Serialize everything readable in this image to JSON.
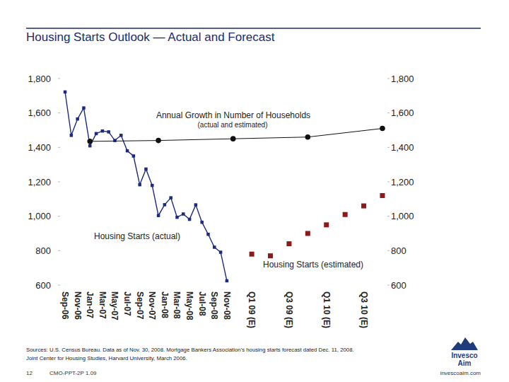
{
  "chart_data": {
    "type": "line",
    "title": "Housing Starts Outlook — Actual and Forecast",
    "categories": [
      "Sep-06",
      null,
      "Nov-06",
      null,
      "Jan-07",
      null,
      "Mar-07",
      null,
      "May-07",
      null,
      "Jul-07",
      null,
      "Sep-07",
      null,
      "Nov-07",
      null,
      "Jan-08",
      null,
      "Mar-08",
      null,
      "May-08",
      null,
      "Jul-08",
      null,
      "Sep-08",
      null,
      "Nov-08",
      null,
      null,
      null,
      "Q1 09 (E)",
      null,
      null,
      null,
      null,
      null,
      "Q3 09 (E)",
      null,
      null,
      null,
      null,
      null,
      "Q1 10 (E)",
      null,
      null,
      null,
      null,
      null,
      "Q3 10 (E)",
      null,
      null,
      null
    ],
    "series": [
      {
        "name": "Housing Starts (actual)",
        "color": "#1c2a80",
        "marker": "square",
        "line_style": "solid",
        "values": [
          1722,
          1470,
          1565,
          1629,
          1409,
          1480,
          1495,
          1490,
          1440,
          1470,
          1380,
          1350,
          1183,
          1274,
          1179,
          1004,
          1067,
          1107,
          994,
          1013,
          982,
          1066,
          965,
          895,
          820,
          791,
          625,
          null,
          null,
          null,
          null,
          null,
          null,
          null,
          null,
          null,
          null,
          null,
          null,
          null,
          null,
          null,
          null,
          null,
          null,
          null,
          null,
          null,
          null,
          null,
          null,
          null
        ]
      },
      {
        "name": "Housing Starts (estimated)",
        "color": "#8b1a1a",
        "marker": "square",
        "line_style": "none",
        "values": [
          null,
          null,
          null,
          null,
          null,
          null,
          null,
          null,
          null,
          null,
          null,
          null,
          null,
          null,
          null,
          null,
          null,
          null,
          null,
          null,
          null,
          null,
          null,
          null,
          null,
          null,
          null,
          null,
          null,
          null,
          780,
          null,
          null,
          770,
          null,
          null,
          840,
          null,
          null,
          900,
          null,
          null,
          950,
          null,
          null,
          1010,
          null,
          null,
          1060,
          null,
          null,
          1120
        ]
      },
      {
        "name": "Annual Growth in Number of Households",
        "color": "#111111",
        "marker": "circle",
        "line_style": "solid",
        "values": [
          null,
          null,
          null,
          null,
          1435,
          null,
          null,
          null,
          null,
          null,
          null,
          null,
          null,
          null,
          null,
          1440,
          null,
          null,
          null,
          null,
          null,
          null,
          null,
          null,
          null,
          null,
          null,
          1450,
          null,
          null,
          null,
          null,
          null,
          null,
          null,
          null,
          null,
          null,
          null,
          1460,
          null,
          null,
          null,
          null,
          null,
          null,
          null,
          null,
          null,
          null,
          null,
          1510
        ]
      }
    ],
    "annotations": [
      "(actual and estimated)"
    ],
    "ylim": [
      600,
      1800
    ],
    "yticks": [
      {
        "value": 600,
        "label": "600"
      },
      {
        "value": 800,
        "label": "800"
      },
      {
        "value": 1000,
        "label": "1,000"
      },
      {
        "value": 1200,
        "label": "1,200"
      },
      {
        "value": 1400,
        "label": "1,400"
      },
      {
        "value": 1600,
        "label": "1,600"
      },
      {
        "value": 1800,
        "label": "1,800"
      }
    ],
    "y2lim": [
      600,
      1800
    ],
    "y2ticks": [
      {
        "value": 600,
        "label": "600"
      },
      {
        "value": 800,
        "label": "800"
      },
      {
        "value": 1000,
        "label": "1,000"
      },
      {
        "value": 1200,
        "label": "1,200"
      },
      {
        "value": 1400,
        "label": "1,400"
      },
      {
        "value": 1600,
        "label": "1,600"
      },
      {
        "value": 1800,
        "label": "1,800"
      }
    ],
    "grid": false
  },
  "footer": {
    "sources": [
      "Sources: U.S. Census Bureau. Data as of Nov. 30, 2008. Mortgage Bankers Association's housing starts forecast dated Dec. 11, 2008.",
      "Joint Center for Housing Studies, Harvard University, March 2006."
    ],
    "page": "12",
    "code": "CMO-PPT-2P 1.09",
    "website": "invescoaim.com",
    "logo": [
      "Invesco",
      "Aim"
    ]
  }
}
